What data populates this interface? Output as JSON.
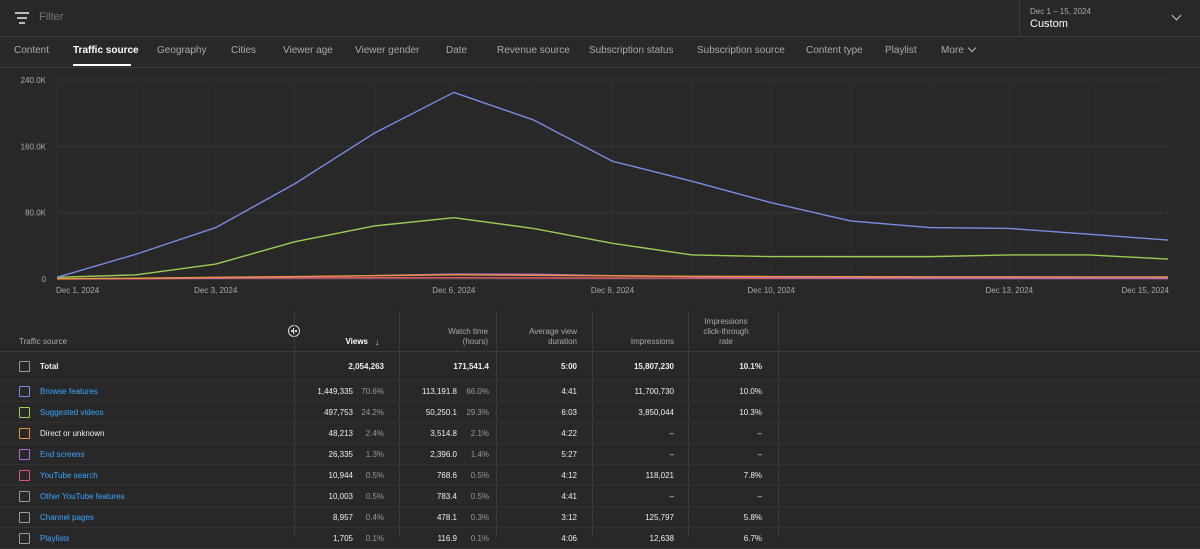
{
  "filter": {
    "placeholder": "Filter"
  },
  "date_picker": {
    "range": "Dec 1 – 15, 2024",
    "mode": "Custom"
  },
  "tabs": [
    {
      "label": "Content",
      "active": false
    },
    {
      "label": "Traffic source",
      "active": true
    },
    {
      "label": "Geography",
      "active": false
    },
    {
      "label": "Cities",
      "active": false
    },
    {
      "label": "Viewer age",
      "active": false
    },
    {
      "label": "Viewer gender",
      "active": false
    },
    {
      "label": "Date",
      "active": false
    },
    {
      "label": "Revenue source",
      "active": false
    },
    {
      "label": "Subscription status",
      "active": false
    },
    {
      "label": "Subscription source",
      "active": false
    },
    {
      "label": "Content type",
      "active": false
    },
    {
      "label": "Playlist",
      "active": false
    },
    {
      "label": "More",
      "active": false
    }
  ],
  "chart_data": {
    "type": "line",
    "y_ticks": [
      "0",
      "80.0K",
      "160.0K",
      "240.0K"
    ],
    "ylim": [
      0,
      240000
    ],
    "x_tick_labels": [
      {
        "day": 1,
        "label": "Dec 1, 2024"
      },
      {
        "day": 3,
        "label": "Dec 3, 2024"
      },
      {
        "day": 6,
        "label": "Dec 6, 2024"
      },
      {
        "day": 8,
        "label": "Dec 8, 2024"
      },
      {
        "day": 10,
        "label": "Dec 10, 2024"
      },
      {
        "day": 13,
        "label": "Dec 13, 2024"
      },
      {
        "day": 15,
        "label": "Dec 15, 2024"
      }
    ],
    "days": [
      1,
      2,
      3,
      4,
      5,
      6,
      7,
      8,
      9,
      10,
      11,
      12,
      13,
      14,
      15
    ],
    "series": [
      {
        "color": "#7b8ce0",
        "values": [
          2000,
          30000,
          62000,
          115000,
          176000,
          225000,
          192000,
          142000,
          118000,
          92000,
          70000,
          62000,
          61000,
          54000,
          47000
        ]
      },
      {
        "color": "#9ccb57",
        "values": [
          2000,
          5000,
          18000,
          45000,
          64000,
          74000,
          61000,
          43000,
          29000,
          27000,
          27000,
          27000,
          29000,
          29000,
          24000
        ]
      },
      {
        "color": "#e8953f",
        "values": [
          300,
          900,
          2000,
          3000,
          4000,
          5000,
          4500,
          3800,
          3200,
          3000,
          2800,
          2600,
          2600,
          2500,
          2400
        ]
      },
      {
        "color": "#b069d6",
        "values": [
          200,
          700,
          1500,
          2500,
          4200,
          6000,
          5800,
          4000,
          2800,
          2000,
          1500,
          1200,
          1100,
          1000,
          900
        ]
      },
      {
        "color": "#e0566a",
        "values": [
          100,
          300,
          800,
          1200,
          1500,
          1600,
          1400,
          1200,
          1000,
          900,
          800,
          700,
          700,
          700,
          600
        ]
      }
    ]
  },
  "table": {
    "headers": {
      "source": "Traffic source",
      "views": "Views",
      "watch_time_1": "Watch time",
      "watch_time_2": "(hours)",
      "avd_1": "Average view",
      "avd_2": "duration",
      "impressions": "Impressions",
      "ctr_1": "Impressions",
      "ctr_2": "click-through",
      "ctr_3": "rate"
    },
    "total": {
      "label": "Total",
      "views": "2,054,263",
      "watch": "171,541.4",
      "avd": "5:00",
      "impressions": "15,807,230",
      "ctr": "10.1%"
    },
    "rows": [
      {
        "label": "Browse features",
        "link": true,
        "color": "#7b8ce0",
        "views": "1,449,335",
        "views_pct": "70.6%",
        "watch": "113,191.8",
        "watch_pct": "66.0%",
        "avd": "4:41",
        "impressions": "11,700,730",
        "ctr": "10.0%"
      },
      {
        "label": "Suggested videos",
        "link": true,
        "color": "#9ccb57",
        "views": "497,753",
        "views_pct": "24.2%",
        "watch": "50,250.1",
        "watch_pct": "29.3%",
        "avd": "6:03",
        "impressions": "3,850,044",
        "ctr": "10.3%"
      },
      {
        "label": "Direct or unknown",
        "link": false,
        "color": "#e8953f",
        "views": "48,213",
        "views_pct": "2.4%",
        "watch": "3,514.8",
        "watch_pct": "2.1%",
        "avd": "4:22",
        "impressions": "–",
        "ctr": "–"
      },
      {
        "label": "End screens",
        "link": true,
        "color": "#b069d6",
        "views": "26,335",
        "views_pct": "1.3%",
        "watch": "2,396.0",
        "watch_pct": "1.4%",
        "avd": "5:27",
        "impressions": "–",
        "ctr": "–"
      },
      {
        "label": "YouTube search",
        "link": true,
        "color": "#e0566a",
        "views": "10,944",
        "views_pct": "0.5%",
        "watch": "768.6",
        "watch_pct": "0.5%",
        "avd": "4:12",
        "impressions": "118,021",
        "ctr": "7.8%"
      },
      {
        "label": "Other YouTube features",
        "link": true,
        "color": "#999999",
        "views": "10,003",
        "views_pct": "0.5%",
        "watch": "783.4",
        "watch_pct": "0.5%",
        "avd": "4:41",
        "impressions": "–",
        "ctr": "–"
      },
      {
        "label": "Channel pages",
        "link": true,
        "color": "#999999",
        "views": "8,957",
        "views_pct": "0.4%",
        "watch": "478.1",
        "watch_pct": "0.3%",
        "avd": "3:12",
        "impressions": "125,797",
        "ctr": "5.8%"
      },
      {
        "label": "Playlists",
        "link": true,
        "color": "#999999",
        "views": "1,705",
        "views_pct": "0.1%",
        "watch": "116.9",
        "watch_pct": "0.1%",
        "avd": "4:06",
        "impressions": "12,638",
        "ctr": "6.7%"
      }
    ]
  }
}
